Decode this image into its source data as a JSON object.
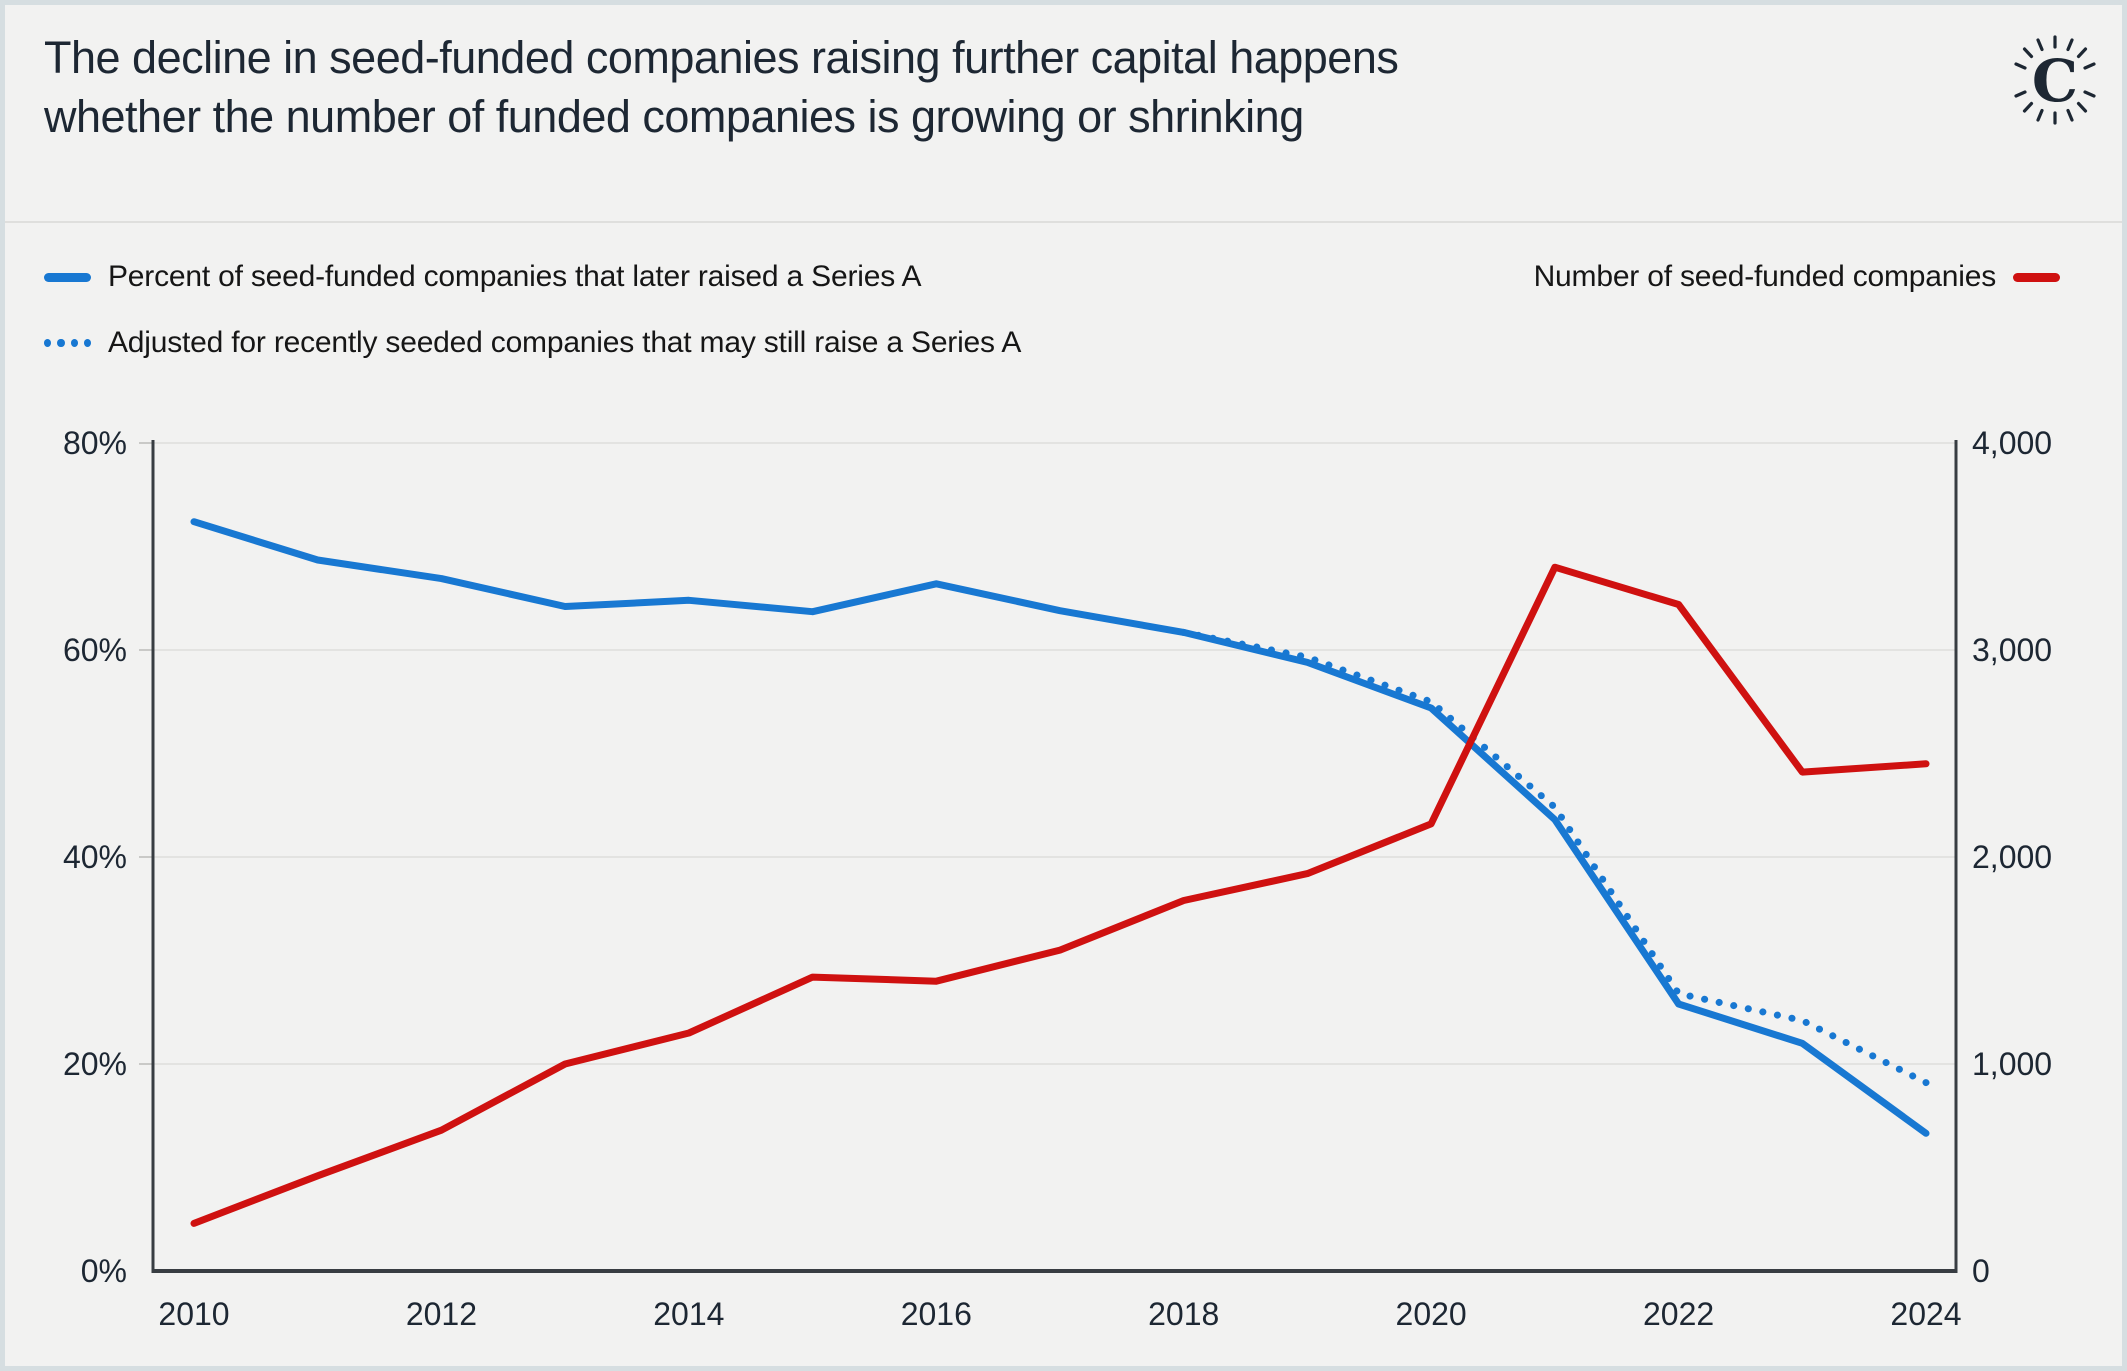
{
  "page": {
    "background": "#f2f2f1",
    "frame_border_color": "#d6dee1",
    "divider_color": "#dfdfdd"
  },
  "header": {
    "title_line1": "The decline in seed-funded companies raising further capital happens",
    "title_line2": "whether the number of funded companies is growing or shrinking",
    "logo_letter": "C"
  },
  "legend": {
    "series_a": {
      "label": "Percent of seed-funded companies that later raised a Series A",
      "color": "#1878d2",
      "style": "solid"
    },
    "adjusted": {
      "label": "Adjusted for recently seeded companies that may still raise a Series A",
      "color": "#1878d2",
      "style": "dotted"
    },
    "companies": {
      "label": "Number of seed-funded companies",
      "color": "#cf1110",
      "style": "solid"
    }
  },
  "chart_data": {
    "type": "line",
    "title": "The decline in seed-funded companies raising further capital happens whether the number of funded companies is growing or shrinking",
    "x": [
      2010,
      2011,
      2012,
      2013,
      2014,
      2015,
      2016,
      2017,
      2018,
      2019,
      2020,
      2021,
      2022,
      2023,
      2024
    ],
    "series": [
      {
        "name": "Adjusted for recently seeded companies that may still raise a Series A",
        "axis": "left",
        "style": "dotted",
        "color": "#1878d2",
        "x": [
          2018,
          2019,
          2020,
          2021,
          2022,
          2023,
          2024
        ],
        "values": [
          61.7,
          59.3,
          55.0,
          44.8,
          26.8,
          24.2,
          18.2
        ]
      },
      {
        "name": "Percent of seed-funded companies that later raised a Series A",
        "axis": "left",
        "style": "solid",
        "color": "#1878d2",
        "values": [
          72.4,
          68.7,
          66.9,
          64.2,
          64.8,
          63.7,
          66.4,
          63.8,
          61.7,
          58.8,
          54.4,
          43.6,
          25.8,
          22.0,
          13.3
        ]
      },
      {
        "name": "Number of seed-funded companies",
        "axis": "right",
        "style": "solid",
        "color": "#cf1110",
        "values": [
          230,
          460,
          680,
          1000,
          1150,
          1420,
          1400,
          1550,
          1790,
          1920,
          2160,
          3400,
          3220,
          2410,
          2450
        ]
      }
    ],
    "axes": {
      "left": {
        "min": 0,
        "max": 80,
        "ticks": [
          "0%",
          "20%",
          "40%",
          "60%",
          "80%"
        ]
      },
      "right": {
        "min": 0,
        "max": 4000,
        "ticks": [
          "0",
          "1,000",
          "2,000",
          "3,000",
          "4,000"
        ]
      },
      "x": {
        "ticks": [
          "2010",
          "2012",
          "2014",
          "2016",
          "2018",
          "2020",
          "2022",
          "2024"
        ],
        "tick_years": [
          2010,
          2012,
          2014,
          2016,
          2018,
          2020,
          2022,
          2024
        ]
      }
    },
    "grid": true,
    "legend_position": "top",
    "colors": {
      "grid": "#e3e3e1",
      "axis": "#383d42",
      "tick_label": "#1d2733"
    }
  }
}
